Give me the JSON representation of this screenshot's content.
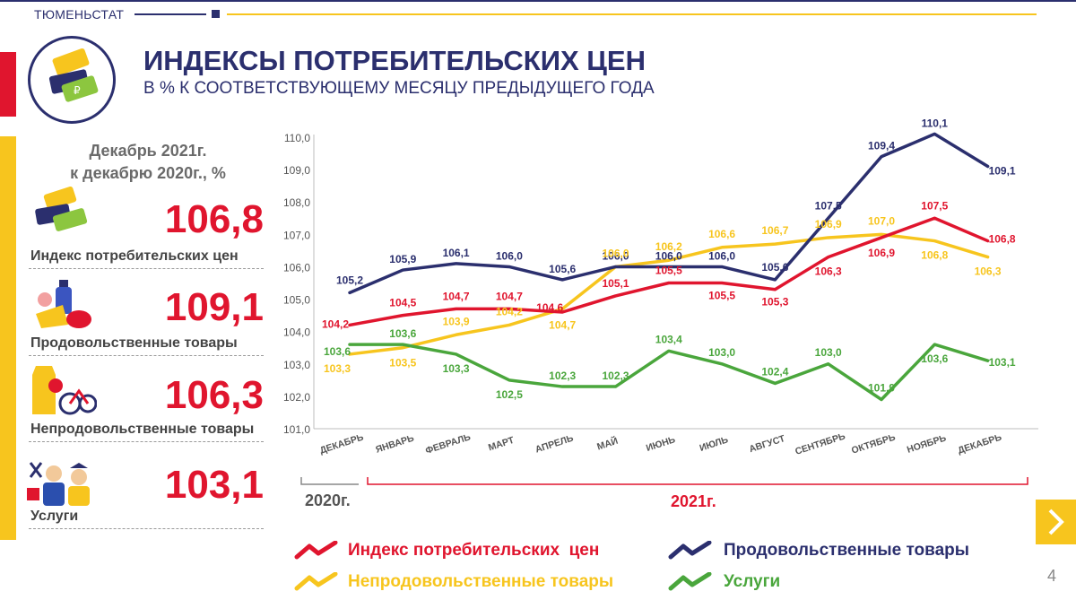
{
  "header": {
    "org": "ТЮМЕНЬСТАТ",
    "title": "ИНДЕКСЫ ПОТРЕБИТЕЛЬСКИХ ЦЕН",
    "subtitle": "В % К СООТВЕТСТВУЮЩЕМУ МЕСЯЦУ ПРЕДЫДУЩЕГО ГОДА"
  },
  "summary": {
    "heading_line1": "Декабрь 2021г.",
    "heading_line2": "к декабрю 2020г., %",
    "items": [
      {
        "value": "106,8",
        "label": "Индекс потребительских цен",
        "icon": "price-tags-icon"
      },
      {
        "value": "109,1",
        "label": "Продовольственные товары",
        "icon": "food-icon"
      },
      {
        "value": "106,3",
        "label": "Непродовольственные товары",
        "icon": "nonfood-goods-icon"
      },
      {
        "value": "103,1",
        "label": "Услуги",
        "icon": "services-icon"
      }
    ]
  },
  "colors": {
    "cpi": "#e0152e",
    "food": "#2b2f6e",
    "nonfood": "#f7c51e",
    "services": "#4aa63c",
    "accent_yellow": "#f7c51e",
    "brand_navy": "#2b2f6e"
  },
  "years": {
    "y2020": "2020г.",
    "y2021": "2021г."
  },
  "page_number": "4",
  "chart_data": {
    "type": "line",
    "title": "ИНДЕКСЫ ПОТРЕБИТЕЛЬСКИХ ЦЕН",
    "ylabel": "",
    "xlabel": "",
    "ylim": [
      101,
      110
    ],
    "yticks": [
      "101,0",
      "102,0",
      "103,0",
      "104,0",
      "105,0",
      "106,0",
      "107,0",
      "108,0",
      "109,0",
      "110,0"
    ],
    "categories": [
      "ДЕКАБРЬ",
      "ЯНВАРЬ",
      "ФЕВРАЛЬ",
      "МАРТ",
      "АПРЕЛЬ",
      "МАЙ",
      "ИЮНЬ",
      "ИЮЛЬ",
      "АВГУСТ",
      "СЕНТЯБРЬ",
      "ОКТЯБРЬ",
      "НОЯБРЬ",
      "ДЕКАБРЬ"
    ],
    "series": [
      {
        "key": "food",
        "name": "Продовольственные товары",
        "values": [
          105.2,
          105.9,
          106.1,
          106.0,
          105.6,
          106.0,
          106.0,
          106.0,
          105.6,
          107.5,
          109.4,
          110.1,
          109.1
        ],
        "labels": [
          "105,2",
          "105,9",
          "106,1",
          "106,0",
          "105,6",
          "106,0",
          "106,0",
          "106,0",
          "105,6",
          "107,5",
          "109,4",
          "110,1",
          "109,1"
        ]
      },
      {
        "key": "cpi",
        "name": "Индекс потребительских  цен",
        "values": [
          104.2,
          104.5,
          104.7,
          104.7,
          104.6,
          105.1,
          105.5,
          105.5,
          105.3,
          106.3,
          106.9,
          107.5,
          106.8
        ],
        "labels": [
          "104,2",
          "104,5",
          "104,7",
          "104,7",
          "104,6",
          "105,1",
          "105,5",
          "105,5",
          "105,3",
          "106,3",
          "106,9",
          "107,5",
          "106,8"
        ]
      },
      {
        "key": "nonfood",
        "name": "Непродовольственные товары",
        "values": [
          103.3,
          103.5,
          103.9,
          104.2,
          104.7,
          106.0,
          106.2,
          106.6,
          106.7,
          106.9,
          107.0,
          106.8,
          106.3
        ],
        "labels": [
          "103,3",
          "103,5",
          "103,9",
          "104,2",
          "104,7",
          "106,0",
          "106,2",
          "106,6",
          "106,7",
          "106,9",
          "107,0",
          "106,8",
          "106,3"
        ]
      },
      {
        "key": "services",
        "name": "Услуги",
        "values": [
          103.6,
          103.6,
          103.3,
          102.5,
          102.3,
          102.3,
          103.4,
          103.0,
          102.4,
          103.0,
          101.9,
          103.6,
          103.1
        ],
        "labels": [
          "103,6",
          "103,6",
          "103,3",
          "102,5",
          "102,3",
          "102,3",
          "103,4",
          "103,0",
          "102,4",
          "103,0",
          "101,9",
          "103,6",
          "103,1"
        ]
      }
    ],
    "legend": "bottom"
  }
}
